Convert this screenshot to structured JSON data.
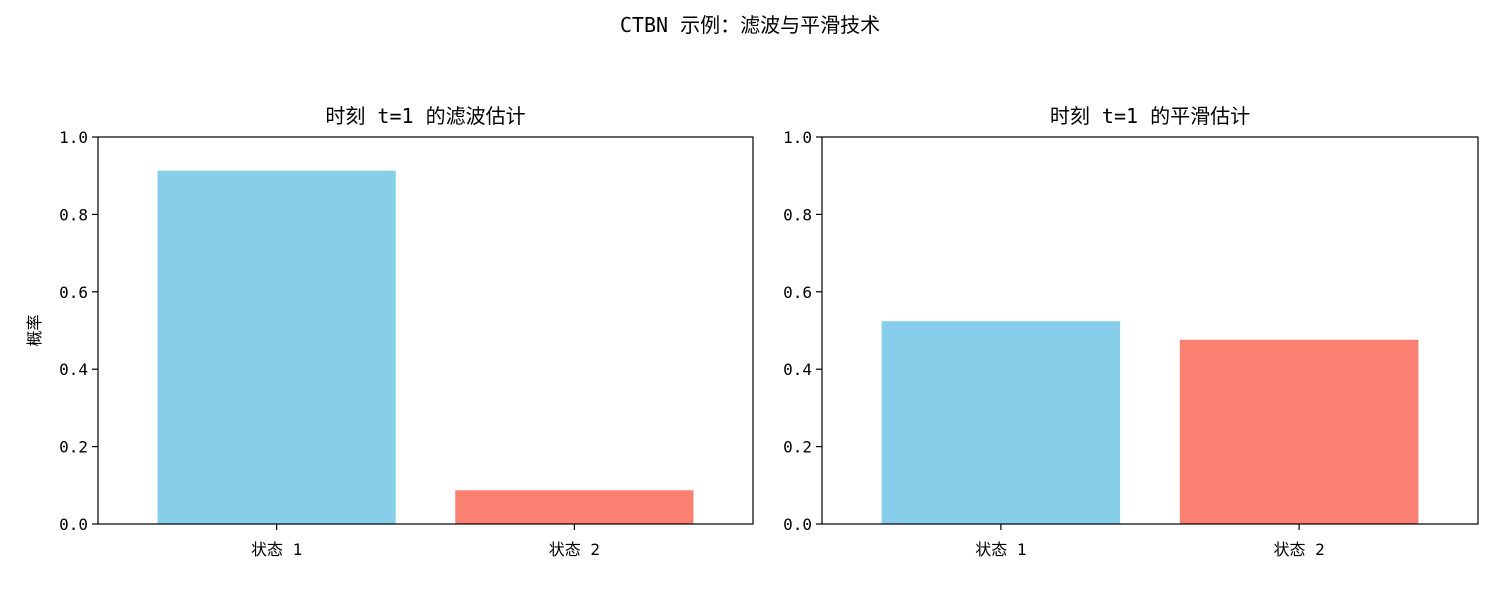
{
  "figure": {
    "title": "CTBN 示例：滤波与平滑技术"
  },
  "chart_data": [
    {
      "type": "bar",
      "title": "时刻 t=1 的滤波估计",
      "xlabel": "",
      "ylabel": "概率",
      "categories": [
        "状态 1",
        "状态 2"
      ],
      "values": [
        0.913,
        0.087
      ],
      "colors": [
        "#87CEEB",
        "#FA8072"
      ],
      "ylim": [
        0,
        1
      ],
      "yticks": [
        0.0,
        0.2,
        0.4,
        0.6,
        0.8,
        1.0
      ],
      "ytick_labels": [
        "0.0",
        "0.2",
        "0.4",
        "0.6",
        "0.8",
        "1.0"
      ],
      "grid": false,
      "legend": "none"
    },
    {
      "type": "bar",
      "title": "时刻 t=1 的平滑估计",
      "xlabel": "",
      "ylabel": "",
      "categories": [
        "状态 1",
        "状态 2"
      ],
      "values": [
        0.524,
        0.476
      ],
      "colors": [
        "#87CEEB",
        "#FA8072"
      ],
      "ylim": [
        0,
        1
      ],
      "yticks": [
        0.0,
        0.2,
        0.4,
        0.6,
        0.8,
        1.0
      ],
      "ytick_labels": [
        "0.0",
        "0.2",
        "0.4",
        "0.6",
        "0.8",
        "1.0"
      ],
      "grid": false,
      "legend": "none"
    }
  ]
}
